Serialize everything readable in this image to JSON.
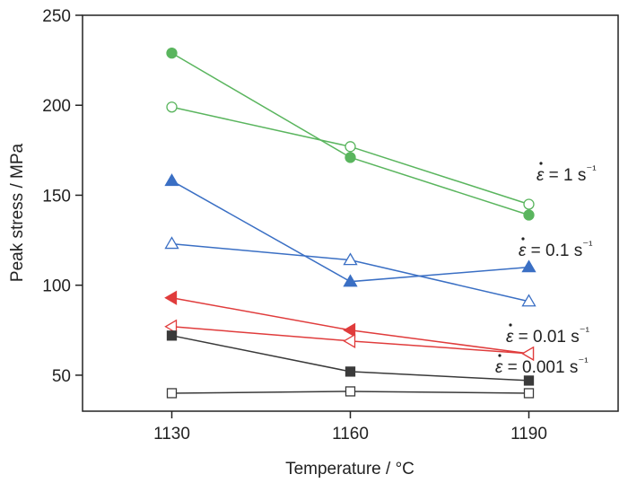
{
  "chart_data": {
    "type": "line",
    "title": "",
    "xlabel": "Temperature / °C",
    "ylabel": "Peak stress / MPa",
    "x": [
      1130,
      1160,
      1190
    ],
    "x_tick_labels": [
      "1130",
      "1160",
      "1190"
    ],
    "xlim": [
      1115,
      1205
    ],
    "ylim": [
      30,
      250
    ],
    "y_ticks": [
      50,
      100,
      150,
      200,
      250
    ],
    "y_tick_labels": [
      "50",
      "100",
      "150",
      "200",
      "250"
    ],
    "grid": false,
    "legend": "none",
    "series_labels": [
      {
        "text": "ε = 1 s⁻¹",
        "color": "#5ab55e"
      },
      {
        "text": "ε = 0.1 s⁻¹",
        "color": "#3a6fc4"
      },
      {
        "text": "ε = 0.01 s⁻¹",
        "color": "#e03c3c"
      },
      {
        "text": "ε = 0.001 s⁻¹",
        "color": "#3a3a3a"
      }
    ],
    "series": [
      {
        "color": "#5ab55e",
        "marker": "circle",
        "filled": true,
        "values": [
          229,
          171,
          139
        ]
      },
      {
        "color": "#5ab55e",
        "marker": "circle",
        "filled": false,
        "values": [
          199,
          177,
          145
        ]
      },
      {
        "color": "#3a6fc4",
        "marker": "triangle-up",
        "filled": true,
        "values": [
          158,
          102,
          110
        ]
      },
      {
        "color": "#3a6fc4",
        "marker": "triangle-up",
        "filled": false,
        "values": [
          123,
          114,
          91
        ]
      },
      {
        "color": "#e03c3c",
        "marker": "triangle-left",
        "filled": true,
        "values": [
          93,
          75,
          62
        ]
      },
      {
        "color": "#e03c3c",
        "marker": "triangle-left",
        "filled": false,
        "values": [
          77,
          69,
          62
        ]
      },
      {
        "color": "#3a3a3a",
        "marker": "square",
        "filled": true,
        "values": [
          72,
          52,
          47
        ]
      },
      {
        "color": "#3a3a3a",
        "marker": "square",
        "filled": false,
        "values": [
          40,
          41,
          40
        ]
      }
    ]
  }
}
